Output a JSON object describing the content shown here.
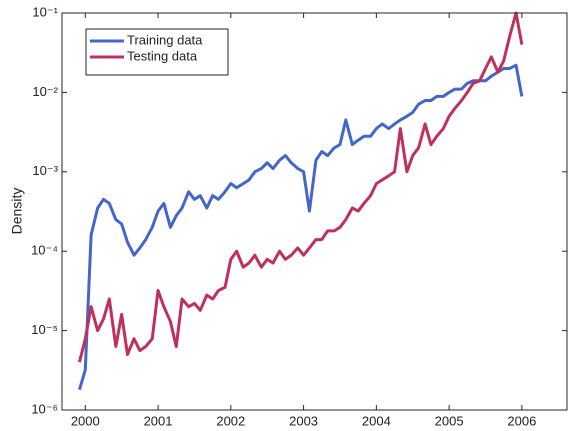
{
  "chart_data": {
    "type": "line",
    "ylabel": "Density",
    "x": [
      1999.92,
      2000.0,
      2000.08,
      2000.17,
      2000.25,
      2000.33,
      2000.42,
      2000.5,
      2000.58,
      2000.67,
      2000.75,
      2000.83,
      2000.92,
      2001.0,
      2001.08,
      2001.17,
      2001.25,
      2001.33,
      2001.42,
      2001.5,
      2001.58,
      2001.67,
      2001.75,
      2001.83,
      2001.92,
      2002.0,
      2002.08,
      2002.17,
      2002.25,
      2002.33,
      2002.42,
      2002.5,
      2002.58,
      2002.67,
      2002.75,
      2002.83,
      2002.92,
      2003.0,
      2003.08,
      2003.17,
      2003.25,
      2003.33,
      2003.42,
      2003.5,
      2003.58,
      2003.67,
      2003.75,
      2003.83,
      2003.92,
      2004.0,
      2004.08,
      2004.17,
      2004.25,
      2004.33,
      2004.42,
      2004.5,
      2004.58,
      2004.67,
      2004.75,
      2004.83,
      2004.92,
      2005.0,
      2005.08,
      2005.17,
      2005.25,
      2005.33,
      2005.42,
      2005.5,
      2005.58,
      2005.67,
      2005.75,
      2005.83,
      2005.92,
      2006.0
    ],
    "series": [
      {
        "name": "Training data",
        "color": "#4466cc",
        "values": [
          1.8e-06,
          3.2e-06,
          0.00016,
          0.00035,
          0.00045,
          0.0004,
          0.00025,
          0.00022,
          0.00013,
          8.9e-05,
          0.00011,
          0.00014,
          0.0002,
          0.00032,
          0.0004,
          0.0002,
          0.00028,
          0.00035,
          0.00056,
          0.00045,
          0.0005,
          0.00035,
          0.0005,
          0.00045,
          0.00056,
          0.00071,
          0.00063,
          0.00071,
          0.00079,
          0.001,
          0.0011,
          0.0013,
          0.0011,
          0.0014,
          0.0016,
          0.0013,
          0.0011,
          0.001,
          0.00032,
          0.0014,
          0.0018,
          0.0016,
          0.002,
          0.0022,
          0.0045,
          0.0022,
          0.0025,
          0.0028,
          0.0028,
          0.0035,
          0.004,
          0.0035,
          0.004,
          0.0045,
          0.005,
          0.0056,
          0.0071,
          0.0079,
          0.0079,
          0.0089,
          0.0089,
          0.01,
          0.011,
          0.011,
          0.013,
          0.014,
          0.014,
          0.014,
          0.016,
          0.018,
          0.02,
          0.02,
          0.022,
          0.0089
        ]
      },
      {
        "name": "Testing data",
        "color": "#c0305e",
        "values": [
          4e-06,
          7.9e-06,
          2e-05,
          1e-05,
          1.4e-05,
          2.5e-05,
          6.3e-06,
          1.6e-05,
          5e-06,
          7.9e-06,
          5.6e-06,
          6.3e-06,
          7.9e-06,
          3.2e-05,
          2e-05,
          1.3e-05,
          6.3e-06,
          2.5e-05,
          2e-05,
          2.2e-05,
          1.8e-05,
          2.8e-05,
          2.5e-05,
          3.2e-05,
          3.5e-05,
          7.9e-05,
          0.0001,
          6.3e-05,
          7.1e-05,
          8.9e-05,
          6.3e-05,
          7.9e-05,
          7.1e-05,
          0.0001,
          7.9e-05,
          8.9e-05,
          0.00011,
          8.9e-05,
          0.00011,
          0.00014,
          0.00014,
          0.00018,
          0.00018,
          0.0002,
          0.00025,
          0.00035,
          0.00032,
          0.0004,
          0.0005,
          0.00071,
          0.00079,
          0.00089,
          0.001,
          0.0035,
          0.001,
          0.0016,
          0.002,
          0.004,
          0.0022,
          0.0028,
          0.0035,
          0.005,
          0.0063,
          0.0079,
          0.01,
          0.013,
          0.014,
          0.02,
          0.028,
          0.018,
          0.025,
          0.05,
          0.1,
          0.04
        ]
      }
    ],
    "xlim": [
      1999.68,
      2006.62
    ],
    "xticks": [
      2000,
      2001,
      2002,
      2003,
      2004,
      2005,
      2006
    ],
    "ylim": [
      1e-06,
      0.1
    ],
    "log_y": true,
    "yticks": [
      {
        "value": 1e-06,
        "label": "10⁻⁶"
      },
      {
        "value": 1e-05,
        "label": "10⁻⁵"
      },
      {
        "value": 0.0001,
        "label": "10⁻⁴"
      },
      {
        "value": 0.001,
        "label": "10⁻³"
      },
      {
        "value": 0.01,
        "label": "10⁻²"
      },
      {
        "value": 0.1,
        "label": "10⁻¹"
      }
    ],
    "legend": "upper left",
    "grid": false
  }
}
